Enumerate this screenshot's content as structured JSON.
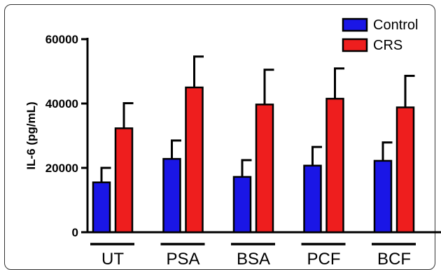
{
  "chart_data": {
    "type": "bar",
    "title": "",
    "xlabel": "",
    "ylabel": "IL-6 (pg/mL)",
    "ylim": [
      0,
      60000
    ],
    "yticks": [
      "0",
      "20000",
      "40000",
      "60000"
    ],
    "ytick_values": [
      0,
      20000,
      40000,
      60000
    ],
    "categories": [
      "UT",
      "PSA",
      "BSA",
      "PCF",
      "BCF"
    ],
    "series": [
      {
        "name": "Control",
        "color": "#1a16e6",
        "values": [
          15500,
          22800,
          17200,
          20700,
          22200
        ],
        "errors": [
          4500,
          5700,
          5200,
          5800,
          5700
        ]
      },
      {
        "name": "CRS",
        "color": "#ee1e1e",
        "values": [
          32300,
          45000,
          39700,
          41500,
          38800
        ],
        "errors": [
          7800,
          9600,
          10800,
          9400,
          9800
        ]
      }
    ],
    "legend": "top-right",
    "grid": false
  }
}
